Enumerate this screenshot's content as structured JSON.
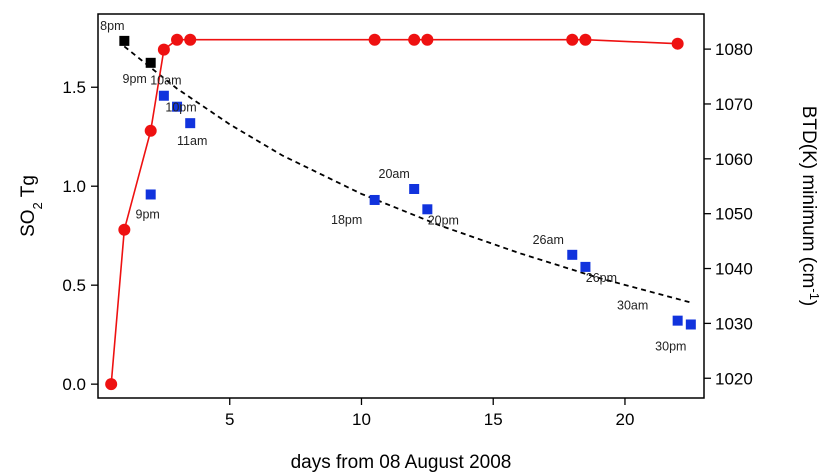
{
  "chart_data": {
    "type": "scatter",
    "xlabel": "days from 08 August 2008",
    "ylabel_left": "SO",
    "ylabel_left_sub": "2",
    "ylabel_left_rest": " Tg",
    "ylabel_right": "BTD(K) minimum (cm",
    "ylabel_right_sup": "-1",
    "ylabel_right_close": ")",
    "xlim": [
      0,
      23
    ],
    "ylim_left": [
      -0.07,
      1.87
    ],
    "ylim_right": [
      1016.4,
      1086.4
    ],
    "x_ticks": [
      5,
      10,
      15,
      20
    ],
    "y_left_ticks": [
      0.0,
      0.5,
      1.0,
      1.5
    ],
    "y_left_tick_labels": [
      "0.0",
      "0.5",
      "1.0",
      "1.5"
    ],
    "y_right_ticks": [
      1020,
      1030,
      1040,
      1050,
      1060,
      1070,
      1080
    ],
    "grid": false,
    "series": [
      {
        "axis": "left",
        "style": "line+circle",
        "color": "#ee1111",
        "points": [
          {
            "x": 0.5,
            "y": 0.0
          },
          {
            "x": 1.0,
            "y": 0.78
          },
          {
            "x": 2.0,
            "y": 1.28
          },
          {
            "x": 2.5,
            "y": 1.69
          },
          {
            "x": 3.0,
            "y": 1.74
          },
          {
            "x": 3.5,
            "y": 1.74
          },
          {
            "x": 10.5,
            "y": 1.74
          },
          {
            "x": 12.0,
            "y": 1.74
          },
          {
            "x": 12.5,
            "y": 1.74
          },
          {
            "x": 18.0,
            "y": 1.74
          },
          {
            "x": 18.5,
            "y": 1.74
          },
          {
            "x": 22.0,
            "y": 1.72
          }
        ]
      },
      {
        "axis": "right",
        "style": "square",
        "color": "#000000",
        "points": [
          {
            "x": 1.0,
            "y": 1081.5,
            "label": "8pm"
          },
          {
            "x": 2.0,
            "y": 1077.5,
            "label": "9pm"
          }
        ]
      },
      {
        "axis": "right",
        "style": "square",
        "color": "#1133dd",
        "points": [
          {
            "x": 2.0,
            "y": 1053.5,
            "label": "9pm"
          },
          {
            "x": 2.5,
            "y": 1071.5,
            "label": "10am"
          },
          {
            "x": 3.0,
            "y": 1069.5,
            "label": "10pm"
          },
          {
            "x": 3.5,
            "y": 1066.5,
            "label": "11am"
          },
          {
            "x": 10.5,
            "y": 1052.5,
            "label": "18pm"
          },
          {
            "x": 12.0,
            "y": 1054.5,
            "label": "20am"
          },
          {
            "x": 12.5,
            "y": 1050.8,
            "label": "20pm"
          },
          {
            "x": 18.0,
            "y": 1042.5,
            "label": "26am"
          },
          {
            "x": 18.5,
            "y": 1040.3,
            "label": "26pm"
          },
          {
            "x": 22.0,
            "y": 1030.5,
            "label": "30am"
          },
          {
            "x": 22.5,
            "y": 1029.8,
            "label": "30pm"
          }
        ]
      },
      {
        "axis": "right",
        "style": "dashed-fit",
        "color": "#000000",
        "points": [
          {
            "x": 1.0,
            "y": 1080.5
          },
          {
            "x": 3.0,
            "y": 1072.8
          },
          {
            "x": 5.0,
            "y": 1066.3
          },
          {
            "x": 7.0,
            "y": 1060.6
          },
          {
            "x": 10.0,
            "y": 1053.6
          },
          {
            "x": 13.0,
            "y": 1047.8
          },
          {
            "x": 16.0,
            "y": 1042.8
          },
          {
            "x": 19.0,
            "y": 1038.3
          },
          {
            "x": 22.5,
            "y": 1033.8
          }
        ]
      }
    ]
  }
}
